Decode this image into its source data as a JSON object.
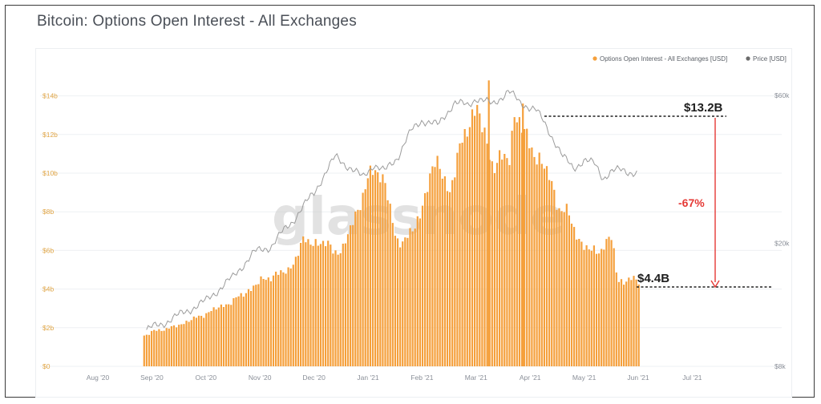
{
  "title": "Bitcoin: Options Open Interest - All Exchanges",
  "watermark": "glassnode",
  "colors": {
    "bars": "#f5a03c",
    "price_line": "#9b9b9b",
    "legend_price_dot": "#6b6b6b",
    "annotation_arrow": "#e53935",
    "annotation_text": "#1e1e1e",
    "annotation_pct": "#e53935"
  },
  "chart_data": {
    "type": "bar",
    "title": "Bitcoin: Options Open Interest - All Exchanges",
    "x_ticks": [
      "Aug '20",
      "Sep '20",
      "Oct '20",
      "Nov '20",
      "Dec '20",
      "Jan '21",
      "Feb '21",
      "Mar '21",
      "Apr '21",
      "May '21",
      "Jun '21",
      "Jul '21"
    ],
    "y_left": {
      "ticks": [
        "$0",
        "$2b",
        "$4b",
        "$6b",
        "$8b",
        "$10b",
        "$12b",
        "$14b"
      ],
      "ylim": [
        0,
        14
      ]
    },
    "y_right": {
      "ticks": [
        "$8k",
        "$20k",
        "$60k"
      ],
      "scale": "log",
      "ylim": [
        8000,
        60000
      ]
    },
    "legend": {
      "position": "top-right",
      "entries": [
        "Options Open Interest - All Exchanges [USD]",
        "Price [USD]"
      ]
    },
    "series": [
      {
        "name": "Options Open Interest - All Exchanges [USD]",
        "kind": "bar",
        "unit": "USD billions",
        "anchors_month": [
          1.57,
          1.85,
          1.95,
          2.5,
          3.4,
          4.4,
          4.7,
          4.9,
          6.5,
          6.4,
          5.9,
          9.0,
          10.3,
          9.6,
          6.4,
          6.9,
          7.8,
          9.8,
          10.5,
          9.0,
          11.4,
          12.8,
          13.2,
          12.4,
          10.4,
          10.9,
          13.2,
          11.8,
          11.5,
          10.4,
          9.8,
          8.3,
          7.8,
          6.5,
          5.9,
          6.1,
          6.7,
          4.4,
          4.5,
          4.4
        ],
        "anchors_x": [
          0.9,
          1.0,
          1.3,
          1.8,
          2.5,
          3.0,
          3.2,
          3.5,
          3.8,
          4.1,
          4.5,
          4.9,
          5.1,
          5.3,
          5.5,
          5.8,
          5.95,
          6.1,
          6.3,
          6.5,
          6.7,
          6.85,
          7.0,
          7.1,
          7.3,
          7.6,
          7.7,
          7.9,
          8.0,
          8.2,
          8.35,
          8.5,
          8.7,
          8.9,
          9.1,
          9.3,
          9.5,
          9.6,
          9.8,
          10.0
        ]
      },
      {
        "name": "Price [USD]",
        "kind": "line",
        "unit": "USD",
        "anchors_x": [
          0.9,
          1.2,
          1.5,
          2.0,
          2.5,
          2.9,
          3.2,
          3.6,
          4.0,
          4.4,
          4.9,
          5.1,
          5.3,
          5.55,
          5.8,
          6.0,
          6.3,
          6.6,
          6.85,
          7.0,
          7.3,
          7.6,
          7.8,
          8.1,
          8.35,
          8.6,
          8.8,
          9.0,
          9.2,
          9.35,
          9.5,
          9.7,
          10.0
        ],
        "anchors_price": [
          10500,
          11000,
          11700,
          13000,
          15500,
          18700,
          19500,
          23500,
          29000,
          38000,
          32500,
          36000,
          34000,
          38000,
          46000,
          50000,
          48000,
          57000,
          55500,
          59000,
          56000,
          62000,
          57000,
          54000,
          46000,
          38000,
          35000,
          37000,
          36000,
          32500,
          34000,
          34500,
          33500
        ]
      }
    ],
    "annotations": {
      "high_label": "$13.2B",
      "low_label": "$4.4B",
      "change_label": "-67%"
    }
  }
}
